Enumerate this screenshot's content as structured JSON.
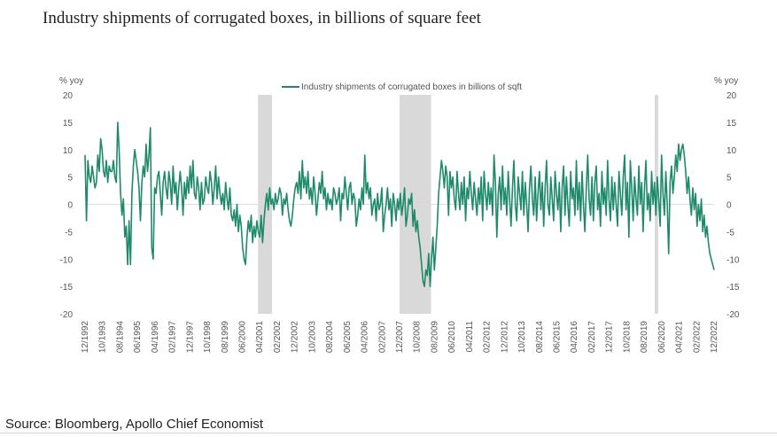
{
  "title": "Industry shipments of corrugated boxes, in billions of square feet",
  "source": "Source: Bloomberg, Apollo Chief Economist",
  "colors": {
    "line": "#1e8a6a",
    "recession": "#d9d9d9",
    "zero_line": "#dddddd"
  },
  "chart_data": {
    "type": "line",
    "series": [
      {
        "name": "Industry shipments of corrugated boxes in billions of sqft",
        "values": [
          9,
          -3,
          8,
          5,
          4,
          7,
          5,
          3,
          4,
          9,
          6,
          12,
          10,
          6,
          5,
          8,
          4,
          7,
          6,
          6,
          8,
          5,
          4,
          15,
          10,
          2,
          -2,
          1,
          -6,
          -4,
          -11,
          -3,
          -11,
          2,
          7,
          10,
          8,
          6,
          3,
          -3,
          4,
          7,
          5,
          11,
          6,
          9,
          14,
          -8,
          -10,
          3,
          2,
          5,
          6,
          2,
          -2,
          4,
          6,
          3,
          1,
          6,
          4,
          0,
          7,
          2,
          4,
          -1,
          3,
          6,
          3,
          -2,
          4,
          1,
          5,
          2,
          7,
          3,
          8,
          2,
          1,
          5,
          3,
          -1,
          4,
          0,
          1,
          5,
          3,
          2,
          6,
          4,
          0,
          3,
          7,
          1,
          5,
          2,
          0,
          2,
          -1,
          4,
          1,
          -1,
          3,
          -2,
          -3,
          -1,
          -4,
          0,
          -5,
          -2,
          -4,
          -8,
          -10,
          -11,
          -6,
          -3,
          -5,
          -2,
          -7,
          -4,
          -6,
          -3,
          -5,
          -6,
          -2,
          -7,
          -3,
          0,
          2,
          -1,
          3,
          0,
          1,
          -1,
          2,
          0,
          1,
          3,
          2,
          -2,
          1,
          0,
          2,
          -1,
          -3,
          -4,
          -2,
          1,
          3,
          4,
          2,
          6,
          1,
          8,
          3,
          5,
          2,
          6,
          1,
          3,
          0,
          5,
          2,
          -2,
          1,
          4,
          2,
          6,
          1,
          3,
          -1,
          2,
          0,
          1,
          -1,
          3,
          2,
          0,
          1,
          3,
          -3,
          2,
          1,
          5,
          2,
          -1,
          3,
          4,
          0,
          2,
          1,
          -4,
          -2,
          1,
          -1,
          3,
          0,
          9,
          2,
          4,
          1,
          3,
          -2,
          0,
          1,
          -3,
          2,
          -1,
          0,
          3,
          -5,
          -2,
          0,
          3,
          -1,
          1,
          -4,
          2,
          0,
          -3,
          1,
          -1,
          2,
          -2,
          0,
          3,
          -4,
          -2,
          1,
          0,
          2,
          -4,
          -1,
          -5,
          -3,
          -6,
          -8,
          -11,
          -14,
          -15,
          -12,
          -13,
          -9,
          -15,
          -10,
          -6,
          -12,
          -8,
          -4,
          2,
          5,
          8,
          6,
          3,
          7,
          5,
          -2,
          6,
          3,
          5,
          1,
          -1,
          6,
          2,
          -1,
          4,
          0,
          5,
          -3,
          3,
          1,
          6,
          2,
          -1,
          4,
          1,
          -2,
          3,
          0,
          5,
          -3,
          6,
          2,
          -1,
          4,
          0,
          3,
          -2,
          9,
          4,
          -6,
          2,
          5,
          -1,
          7,
          0,
          3,
          -2,
          6,
          1,
          -4,
          3,
          8,
          0,
          -3,
          5,
          2,
          -1,
          6,
          -2,
          4,
          0,
          -5,
          3,
          7,
          1,
          -2,
          5,
          -3,
          2,
          6,
          -1,
          4,
          -4,
          3,
          8,
          0,
          -2,
          5,
          1,
          -3,
          6,
          2,
          -1,
          4,
          -5,
          3,
          7,
          -2,
          5,
          0,
          -4,
          6,
          1,
          3,
          -2,
          8,
          -1,
          4,
          -3,
          6,
          0,
          -5,
          3,
          9,
          1,
          -2,
          5,
          -3,
          4,
          7,
          -1,
          2,
          -4,
          6,
          0,
          3,
          -2,
          8,
          1,
          -3,
          5,
          -1,
          4,
          0,
          -4,
          6,
          2,
          -2,
          5,
          9,
          -1,
          4,
          -6,
          8,
          3,
          -3,
          5,
          1,
          -2,
          7,
          0,
          4,
          -5,
          3,
          8,
          -1,
          2,
          -3,
          6,
          0,
          4,
          -2,
          5,
          1,
          -4,
          9,
          2,
          -2,
          6,
          0,
          -9,
          4,
          7,
          2,
          5,
          9,
          6,
          11,
          8,
          10,
          11,
          9,
          6,
          2,
          5,
          1,
          -2,
          3,
          -1,
          2,
          -4,
          0,
          -3,
          1,
          -5,
          -2,
          -6,
          -4,
          -7,
          -9,
          -10,
          -11,
          -12
        ]
      }
    ],
    "x_range": [
      "12/1992",
      "12/2022"
    ],
    "x_tick_labels": [
      "12/1992",
      "10/1993",
      "08/1994",
      "06/1995",
      "04/1996",
      "02/1997",
      "12/1997",
      "10/1998",
      "08/1999",
      "06/2000",
      "04/2001",
      "02/2002",
      "12/2002",
      "10/2003",
      "08/2004",
      "06/2005",
      "04/2006",
      "02/2007",
      "12/2007",
      "10/2008",
      "08/2009",
      "06/2010",
      "04/2011",
      "02/2012",
      "12/2012",
      "10/2013",
      "08/2014",
      "06/2015",
      "04/2016",
      "02/2017",
      "12/2017",
      "10/2018",
      "08/2019",
      "06/2020",
      "04/2021",
      "02/2022",
      "12/2022"
    ],
    "y_ticks": [
      20,
      15,
      10,
      5,
      0,
      -5,
      -10,
      -15,
      -20
    ],
    "ylim": [
      -20,
      20
    ],
    "y_unit_left": "% yoy",
    "y_unit_right": "% yoy",
    "recessions": [
      [
        "03/2001",
        "11/2001"
      ],
      [
        "12/2007",
        "06/2009"
      ],
      [
        "02/2020",
        "04/2020"
      ]
    ],
    "legend_position": "top-center",
    "grid": false
  }
}
